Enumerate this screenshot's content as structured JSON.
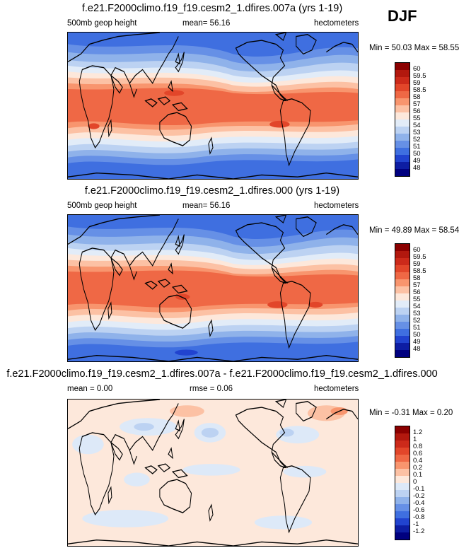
{
  "season": "DJF",
  "panels": [
    {
      "title": "f.e21.F2000climo.f19_f19.cesm2_1.dfires.007a (yrs 1-19)",
      "left_label": "500mb geop height",
      "center_label": "mean=  56.16",
      "right_label": "hectometers",
      "minmax": "Min =  50.03 Max =  58.55"
    },
    {
      "title": "f.e21.F2000climo.f19_f19.cesm2_1.dfires.000 (yrs 1-19)",
      "left_label": "500mb geop height",
      "center_label": "mean=  56.16",
      "right_label": "hectometers",
      "minmax": "Min =  49.89 Max =  58.54"
    },
    {
      "title": "f.e21.F2000climo.f19_f19.cesm2_1.dfires.007a - f.e21.F2000climo.f19_f19.cesm2_1.dfires.000",
      "left_label": "mean =  0.00",
      "center_label": "rmse =  0.06",
      "right_label": "hectometers",
      "minmax": "Min = -0.31 Max =  0.20"
    }
  ],
  "colorbars": {
    "field": {
      "labels": [
        "60",
        "59.5",
        "59",
        "58.5",
        "58",
        "57",
        "56",
        "55",
        "54",
        "53",
        "52",
        "51",
        "50",
        "49",
        "48"
      ],
      "colors": [
        "#8b0000",
        "#b2180e",
        "#cc2a1a",
        "#e2462a",
        "#ef6845",
        "#f8956e",
        "#fcc1a4",
        "#fde8db",
        "#e2ecf8",
        "#bcd2f2",
        "#8fb2ea",
        "#6690e6",
        "#3f6fe0",
        "#2143cf",
        "#0d1da3",
        "#00007f"
      ]
    },
    "diff": {
      "labels": [
        "1.2",
        "1",
        "0.8",
        "0.6",
        "0.4",
        "0.2",
        "0.1",
        "0",
        "-0.1",
        "-0.2",
        "-0.4",
        "-0.6",
        "-0.8",
        "-1",
        "-1.2"
      ],
      "colors": [
        "#8b0000",
        "#b2180e",
        "#cc2a1a",
        "#e2462a",
        "#ef6845",
        "#f8956e",
        "#fcc1a4",
        "#fde8db",
        "#dde9f8",
        "#bcd2f2",
        "#8fb2ea",
        "#6690e6",
        "#3f6fe0",
        "#2143cf",
        "#0d1da3",
        "#00007f"
      ]
    }
  },
  "chart_data": [
    {
      "type": "heatmap",
      "title": "f.e21.F2000climo.f19_f19.cesm2_1.dfires.007a (yrs 1-19)",
      "variable": "500mb geop height",
      "units": "hectometers",
      "season": "DJF",
      "mean": 56.16,
      "min": 50.03,
      "max": 58.55,
      "contour_levels": [
        48,
        49,
        50,
        51,
        52,
        53,
        54,
        55,
        56,
        57,
        58,
        58.5,
        59,
        59.5,
        60
      ]
    },
    {
      "type": "heatmap",
      "title": "f.e21.F2000climo.f19_f19.cesm2_1.dfires.000 (yrs 1-19)",
      "variable": "500mb geop height",
      "units": "hectometers",
      "season": "DJF",
      "mean": 56.16,
      "min": 49.89,
      "max": 58.54,
      "contour_levels": [
        48,
        49,
        50,
        51,
        52,
        53,
        54,
        55,
        56,
        57,
        58,
        58.5,
        59,
        59.5,
        60
      ]
    },
    {
      "type": "heatmap",
      "title": "f.e21.F2000climo.f19_f19.cesm2_1.dfires.007a - f.e21.F2000climo.f19_f19.cesm2_1.dfires.000",
      "units": "hectometers",
      "mean": 0.0,
      "rmse": 0.06,
      "min": -0.31,
      "max": 0.2,
      "contour_levels": [
        -1.2,
        -1,
        -0.8,
        -0.6,
        -0.4,
        -0.2,
        -0.1,
        0,
        0.1,
        0.2,
        0.4,
        0.6,
        0.8,
        1,
        1.2
      ]
    }
  ]
}
